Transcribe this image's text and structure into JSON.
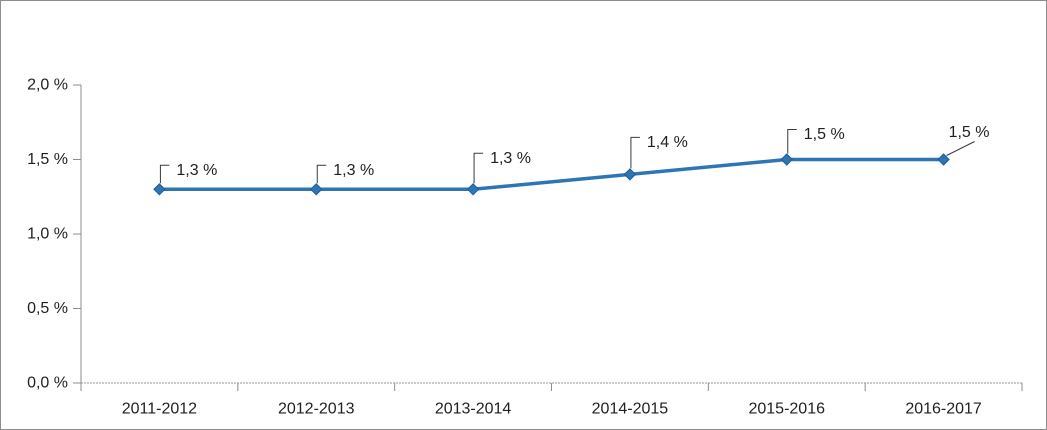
{
  "figure": {
    "background": "#ffffff",
    "border_color": "#8c8c8c"
  },
  "chart_data": {
    "type": "line",
    "title": "",
    "xlabel": "",
    "ylabel": "",
    "categories": [
      "2011-2012",
      "2012-2013",
      "2013-2014",
      "2014-2015",
      "2015-2016",
      "2016-2017"
    ],
    "series": [
      {
        "name": "",
        "values": [
          1.3,
          1.3,
          1.3,
          1.4,
          1.5,
          1.5
        ],
        "color": "#2E75B6",
        "marker": "diamond",
        "marker_stroke": "#1F5C99",
        "data_labels": [
          "1,3 %",
          "1,3 %",
          "1,3 %",
          "1,4 %",
          "1,5 %",
          "1,5 %"
        ]
      }
    ],
    "ylim": [
      0,
      2
    ],
    "y_tick_step": 0.5,
    "y_tick_labels": [
      "0,0 %",
      "0,5 %",
      "1,0 %",
      "1,5 %",
      "2,0 %"
    ],
    "grid": "off",
    "legend": "none",
    "axis_color": "#8c8c8c",
    "baseline_color": "#949494",
    "text_color": "#1f1f1f",
    "leader_line_color": "#3a3a3a"
  }
}
